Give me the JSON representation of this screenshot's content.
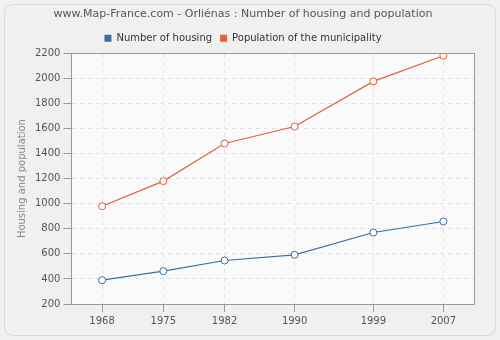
{
  "chart_data": {
    "type": "line",
    "title": "www.Map-France.com - Orliénas : Number of housing and population",
    "ylabel": "Housing and population",
    "x": [
      1968,
      1975,
      1982,
      1990,
      1999,
      2007
    ],
    "series": [
      {
        "name": "Number of housing",
        "color": "#3a6ea5",
        "values": [
          390,
          462,
          547,
          592,
          770,
          858
        ]
      },
      {
        "name": "Population of the municipality",
        "color": "#e0603a",
        "values": [
          980,
          1180,
          1480,
          1615,
          1975,
          2180
        ]
      }
    ],
    "xlim": [
      1964.5,
      2010.5
    ],
    "xticks": [
      1968,
      1975,
      1982,
      1990,
      1999,
      2007
    ],
    "ylim": [
      200,
      2200
    ],
    "yticks": [
      200,
      400,
      600,
      800,
      1000,
      1200,
      1400,
      1600,
      1800,
      2000,
      2200
    ],
    "grid": true,
    "legend": "top",
    "marker": "circle"
  }
}
